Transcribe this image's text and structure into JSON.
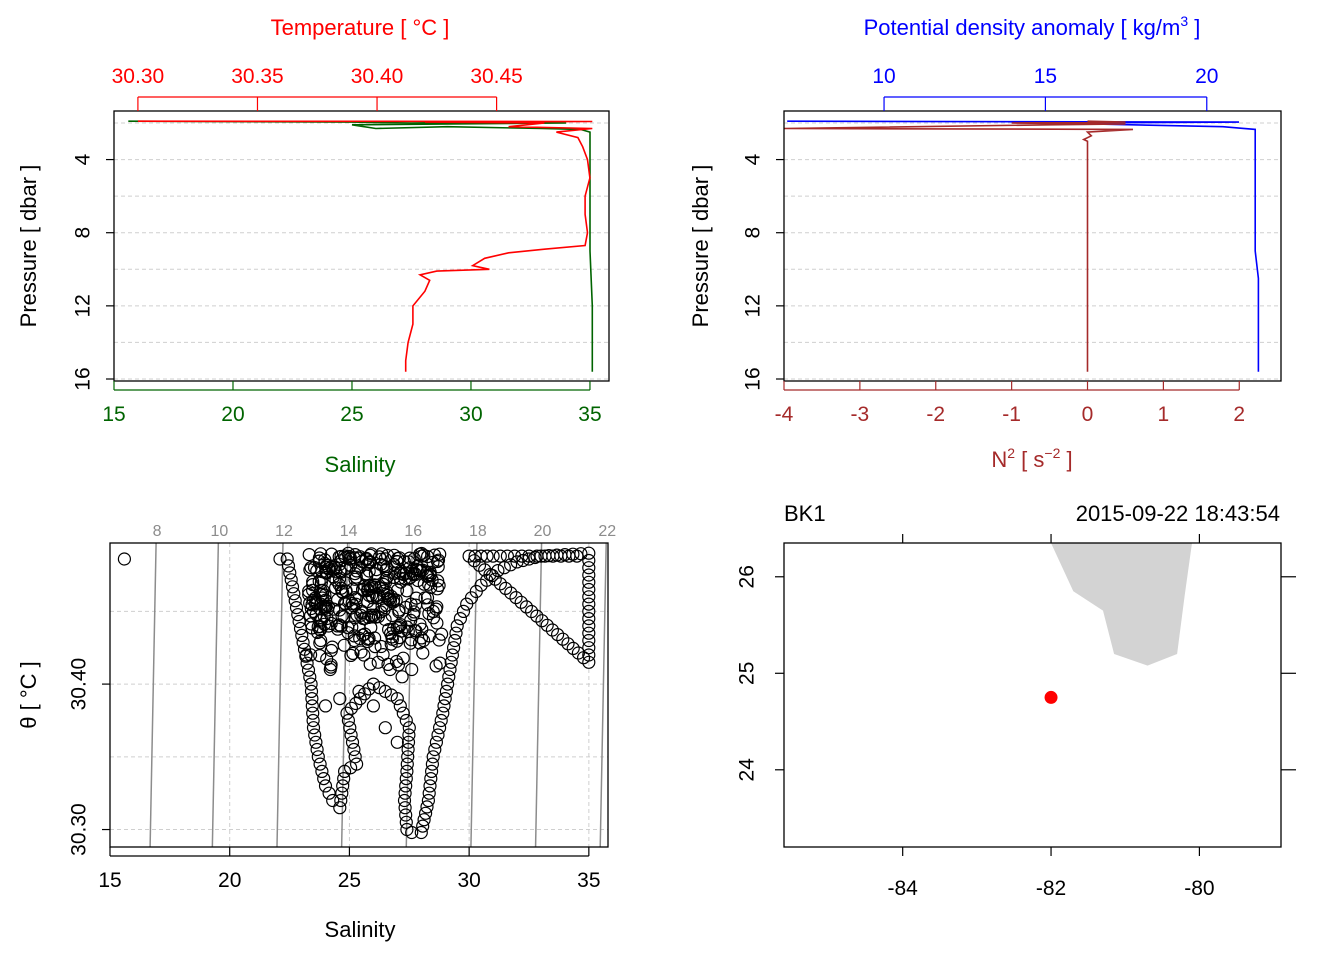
{
  "colors": {
    "temperature": "#ff0000",
    "salinity": "#006400",
    "density": "#0000ff",
    "n2": "#a52a2a",
    "grid": "#cfcfcf",
    "isopycnal": "#8c8c8c",
    "coast": "#d3d3d3",
    "station": "#ff0000"
  },
  "chart_data": [
    {
      "id": "ts_profile",
      "type": "line",
      "title_top": "Temperature [ °C ]",
      "xlabel_bottom": "Salinity",
      "ylabel": "Pressure [ dbar ]",
      "ylim": [
        16,
        2
      ],
      "y_ticks": [
        "4",
        "8",
        "12",
        "16"
      ],
      "top_axis": {
        "range": [
          30.29,
          30.497
        ],
        "ticks": [
          "30.30",
          "30.35",
          "30.40",
          "30.45"
        ]
      },
      "bottom_axis": {
        "range": [
          15,
          35.8
        ],
        "ticks": [
          "15",
          "20",
          "25",
          "30",
          "35"
        ]
      },
      "series": [
        {
          "name": "Salinity",
          "color_key": "salinity",
          "points": [
            [
              15.6,
              1.9
            ],
            [
              25,
              1.95
            ],
            [
              27.5,
              2.0
            ],
            [
              30,
              1.95
            ],
            [
              34,
              2.0
            ],
            [
              25,
              2.1
            ],
            [
              26,
              2.3
            ],
            [
              29,
              2.2
            ],
            [
              33,
              2.3
            ],
            [
              34.6,
              2.35
            ],
            [
              35.0,
              2.5
            ],
            [
              35.0,
              5
            ],
            [
              35.0,
              9
            ],
            [
              35.1,
              12
            ],
            [
              35.1,
              15.6
            ]
          ]
        },
        {
          "name": "Temperature",
          "color_key": "temperature",
          "points": [
            [
              30.3,
              1.9
            ],
            [
              30.49,
              1.92
            ],
            [
              30.42,
              1.95
            ],
            [
              30.47,
              2.0
            ],
            [
              30.455,
              2.2
            ],
            [
              30.49,
              2.3
            ],
            [
              30.475,
              2.5
            ],
            [
              30.484,
              2.8
            ],
            [
              30.486,
              3.3
            ],
            [
              30.488,
              4
            ],
            [
              30.489,
              5
            ],
            [
              30.487,
              6
            ],
            [
              30.487,
              7
            ],
            [
              30.488,
              8
            ],
            [
              30.487,
              8.7
            ],
            [
              30.47,
              8.9
            ],
            [
              30.455,
              9.1
            ],
            [
              30.445,
              9.4
            ],
            [
              30.44,
              9.8
            ],
            [
              30.447,
              10.0
            ],
            [
              30.425,
              10.1
            ],
            [
              30.418,
              10.3
            ],
            [
              30.422,
              10.6
            ],
            [
              30.42,
              11.2
            ],
            [
              30.415,
              12
            ],
            [
              30.415,
              13
            ],
            [
              30.413,
              14
            ],
            [
              30.412,
              15
            ],
            [
              30.412,
              15.6
            ]
          ]
        }
      ]
    },
    {
      "id": "density_n2_profile",
      "type": "line",
      "title_top": "Potential density anomaly [ kg/m",
      "title_top_sup": "3",
      "title_top_end": " ]",
      "xlabel_bottom": "N",
      "xlabel_bottom_sup1": "2",
      "xlabel_bottom_mid": " [ s",
      "xlabel_bottom_sup2": "−2",
      "xlabel_bottom_end": " ]",
      "ylabel": "Pressure [ dbar ]",
      "ylim": [
        16,
        2
      ],
      "y_ticks": [
        "4",
        "8",
        "12",
        "16"
      ],
      "top_axis": {
        "range": [
          6.9,
          22.3
        ],
        "ticks": [
          "10",
          "15",
          "20"
        ]
      },
      "bottom_axis": {
        "range": [
          -4,
          2.55
        ],
        "ticks": [
          "-4",
          "-3",
          "-2",
          "-1",
          "0",
          "1",
          "2"
        ]
      },
      "series": [
        {
          "name": "Potential density anomaly",
          "color_key": "density",
          "points": [
            [
              7.0,
              1.9
            ],
            [
              21.0,
              1.95
            ],
            [
              15,
              2.0
            ],
            [
              20.5,
              2.2
            ],
            [
              21.5,
              2.35
            ],
            [
              21.5,
              3
            ],
            [
              21.5,
              9
            ],
            [
              21.6,
              10.5
            ],
            [
              21.6,
              15.6
            ]
          ]
        },
        {
          "name": "N2",
          "color_key": "n2",
          "points": [
            [
              0,
              1.9
            ],
            [
              0.5,
              1.95
            ],
            [
              -1,
              2.0
            ],
            [
              0.5,
              2.05
            ],
            [
              -0.5,
              2.1
            ],
            [
              -4.0,
              2.3
            ],
            [
              0.6,
              2.35
            ],
            [
              0.0,
              2.5
            ],
            [
              0.05,
              2.7
            ],
            [
              -0.05,
              2.9
            ],
            [
              0,
              3
            ],
            [
              0,
              15.6
            ]
          ]
        }
      ]
    },
    {
      "id": "ts_diagram",
      "type": "scatter",
      "xlabel": "Salinity",
      "ylabel": "θ [ °C ]",
      "xlim": [
        15,
        35.8
      ],
      "ylim": [
        30.288,
        30.497
      ],
      "x_ticks": [
        "15",
        "20",
        "25",
        "30",
        "35"
      ],
      "y_ticks": [
        "30.30",
        "30.40"
      ],
      "isopycnals": [
        {
          "label": "8",
          "salinity": 16.8
        },
        {
          "label": "10",
          "salinity": 19.4
        },
        {
          "label": "12",
          "salinity": 22.1
        },
        {
          "label": "14",
          "salinity": 24.8
        },
        {
          "label": "16",
          "salinity": 27.5
        },
        {
          "label": "18",
          "salinity": 30.2
        },
        {
          "label": "20",
          "salinity": 32.9
        },
        {
          "label": "22",
          "salinity": 35.6
        }
      ],
      "points": [
        [
          15.6,
          30.486
        ],
        [
          22.1,
          30.486
        ],
        [
          22.4,
          30.486
        ],
        [
          23.4,
          30.4
        ],
        [
          23.5,
          30.37
        ],
        [
          23.7,
          30.35
        ],
        [
          24.0,
          30.33
        ],
        [
          24.3,
          30.32
        ],
        [
          24.6,
          30.315
        ],
        [
          24.8,
          30.34
        ],
        [
          25.3,
          30.345
        ],
        [
          24.9,
          30.38
        ],
        [
          26.0,
          30.4
        ],
        [
          26.5,
          30.395
        ],
        [
          27.0,
          30.39
        ],
        [
          27.5,
          30.37
        ],
        [
          27.4,
          30.34
        ],
        [
          27.3,
          30.32
        ],
        [
          27.4,
          30.3
        ],
        [
          27.6,
          30.298
        ],
        [
          28.0,
          30.298
        ],
        [
          28.3,
          30.32
        ],
        [
          28.5,
          30.35
        ],
        [
          28.9,
          30.38
        ],
        [
          29.2,
          30.41
        ],
        [
          29.5,
          30.44
        ],
        [
          29.9,
          30.455
        ],
        [
          30.5,
          30.468
        ],
        [
          31.2,
          30.478
        ],
        [
          32.0,
          30.484
        ],
        [
          33.0,
          30.488
        ],
        [
          34.0,
          30.489
        ],
        [
          35.0,
          30.49
        ],
        [
          35.0,
          30.47
        ],
        [
          35.0,
          30.45
        ],
        [
          35.0,
          30.43
        ],
        [
          35.0,
          30.42
        ],
        [
          35.0,
          30.415
        ],
        [
          30.0,
          30.488
        ],
        [
          30.5,
          30.488
        ],
        [
          31.0,
          30.488
        ],
        [
          32.5,
          30.488
        ],
        [
          33.5,
          30.488
        ],
        [
          34.5,
          30.488
        ]
      ],
      "dense_region": {
        "s_range": [
          23.3,
          28.9
        ],
        "t_range": [
          30.41,
          30.49
        ],
        "spread_points": [
          [
            23.2,
            30.42
          ],
          [
            23.5,
            30.45
          ],
          [
            23.8,
            30.43
          ],
          [
            24.2,
            30.41
          ],
          [
            24.5,
            30.44
          ],
          [
            25.2,
            30.43
          ],
          [
            25.6,
            30.42
          ],
          [
            26.2,
            30.415
          ],
          [
            26.7,
            30.41
          ],
          [
            27.2,
            30.405
          ],
          [
            27.6,
            30.41
          ],
          [
            28.1,
            30.43
          ],
          [
            28.5,
            30.45
          ],
          [
            24.0,
            30.385
          ],
          [
            24.6,
            30.39
          ],
          [
            25.4,
            30.395
          ],
          [
            26.0,
            30.385
          ],
          [
            27.0,
            30.36
          ],
          [
            26.5,
            30.37
          ]
        ]
      }
    },
    {
      "id": "station_map",
      "type": "map",
      "station_label": "BK1",
      "time_label": "2015-09-22 18:43:54",
      "xlim": [
        -85.6,
        -78.9
      ],
      "ylim": [
        23.2,
        26.35
      ],
      "x_ticks": [
        "-84",
        "-82",
        "-80"
      ],
      "y_ticks": [
        "24",
        "25",
        "26"
      ],
      "station": {
        "lon": -82.0,
        "lat": 24.75
      },
      "coast_polygon": [
        [
          -82.0,
          26.35
        ],
        [
          -81.7,
          25.85
        ],
        [
          -81.3,
          25.65
        ],
        [
          -81.15,
          25.2
        ],
        [
          -80.7,
          25.08
        ],
        [
          -80.3,
          25.2
        ],
        [
          -80.2,
          25.8
        ],
        [
          -80.1,
          26.35
        ]
      ]
    }
  ]
}
